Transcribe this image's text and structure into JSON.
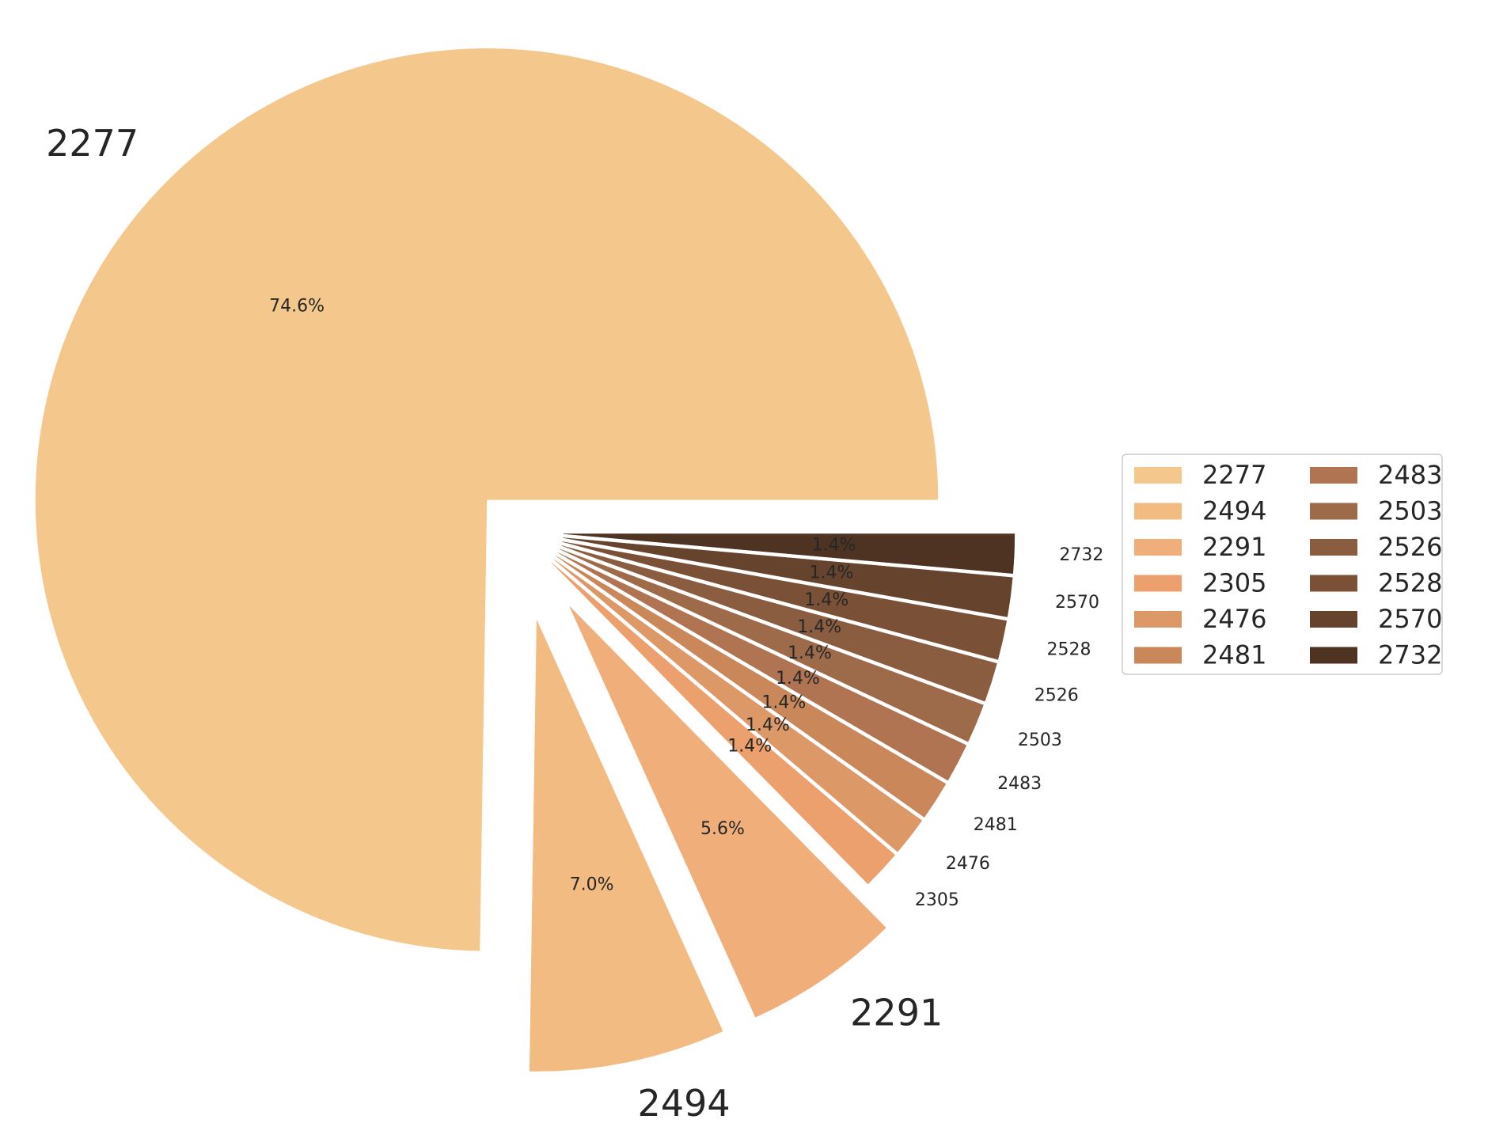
{
  "chart_data": {
    "type": "pie",
    "categories": [
      "2277",
      "2494",
      "2291",
      "2305",
      "2476",
      "2481",
      "2483",
      "2503",
      "2526",
      "2528",
      "2570",
      "2732"
    ],
    "values": [
      74.6,
      7.0,
      5.6,
      1.4,
      1.4,
      1.4,
      1.4,
      1.4,
      1.4,
      1.4,
      1.4,
      1.4
    ],
    "percent_labels": [
      "74.6%",
      "7.0%",
      "5.6%",
      "1.4%",
      "1.4%",
      "1.4%",
      "1.4%",
      "1.4%",
      "1.4%",
      "1.4%",
      "1.4%",
      "1.4%"
    ],
    "colors": [
      "#F4C88C",
      "#F2BB82",
      "#F0AE7A",
      "#ECA06E",
      "#DD9868",
      "#C9875A",
      "#B07452",
      "#9E6B4A",
      "#8A5D40",
      "#7A5036",
      "#66432D",
      "#4F3322"
    ],
    "explode": [
      0.1,
      0.2,
      0.2,
      0.1,
      0.1,
      0.1,
      0.1,
      0.1,
      0.1,
      0.1,
      0.1,
      0.1
    ],
    "start_angle_deg": 0,
    "direction": "counterclockwise",
    "legend": {
      "placement": "right",
      "columns": 2,
      "entries": [
        "2277",
        "2494",
        "2291",
        "2305",
        "2476",
        "2481",
        "2483",
        "2503",
        "2526",
        "2528",
        "2570",
        "2732"
      ]
    }
  }
}
